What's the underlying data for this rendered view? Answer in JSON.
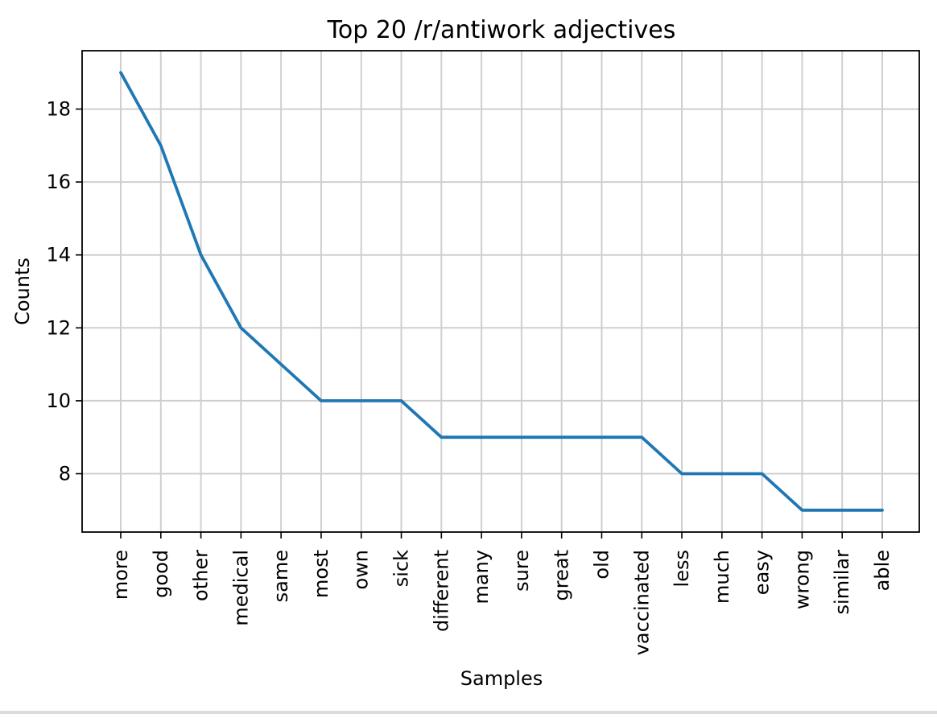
{
  "chart_data": {
    "type": "line",
    "title": "Top 20 /r/antiwork adjectives",
    "xlabel": "Samples",
    "ylabel": "Counts",
    "categories": [
      "more",
      "good",
      "other",
      "medical",
      "same",
      "most",
      "own",
      "sick",
      "different",
      "many",
      "sure",
      "great",
      "old",
      "vaccinated",
      "less",
      "much",
      "easy",
      "wrong",
      "similar",
      "able"
    ],
    "series": [
      {
        "values": [
          19,
          17,
          14,
          12,
          11,
          10,
          10,
          10,
          9,
          9,
          9,
          9,
          9,
          9,
          8,
          8,
          8,
          7,
          7,
          7
        ]
      }
    ],
    "ylim": [
      6.4,
      19.6
    ],
    "yticks": [
      8,
      10,
      12,
      14,
      16,
      18
    ],
    "grid": true,
    "line_color": "#1f77b4"
  }
}
